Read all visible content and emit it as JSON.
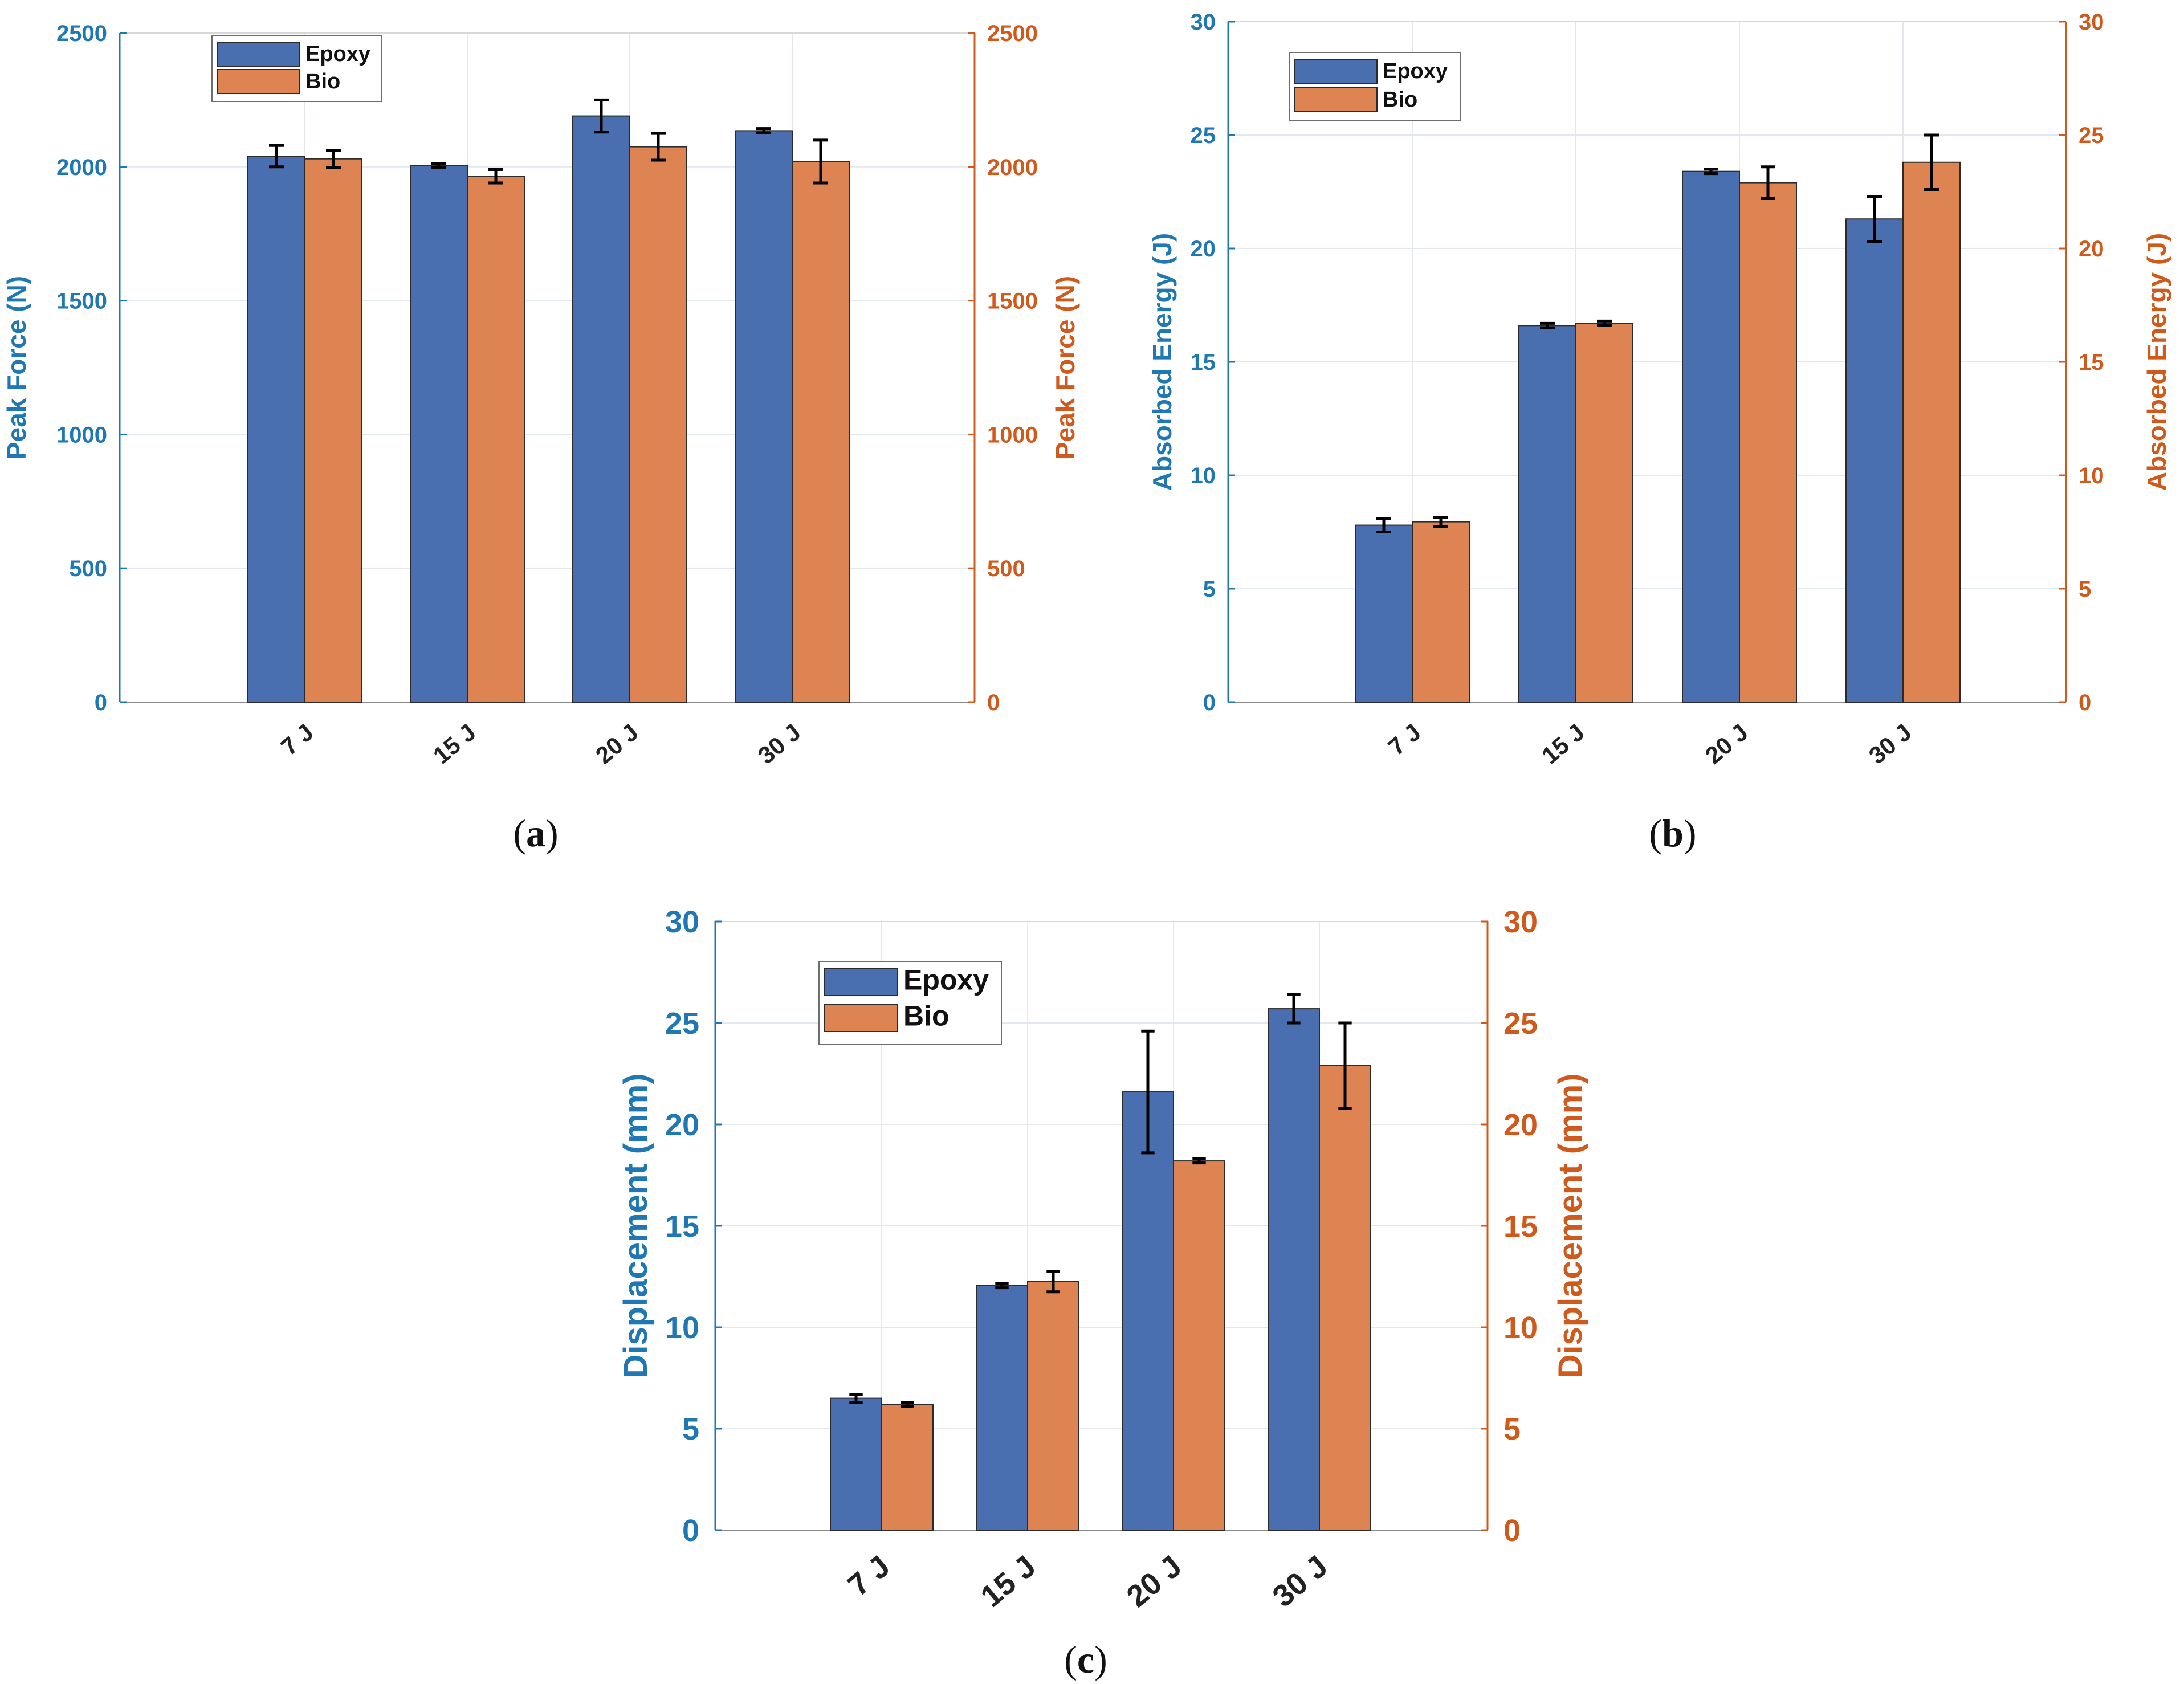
{
  "colors": {
    "epoxy": "#4a6fb0",
    "bio": "#dd8452",
    "left_axis": "#1f78b4",
    "right_axis": "#d05a1c",
    "grid": "#e3e8ee",
    "frame": "#d8d8d8",
    "error": "#000000"
  },
  "chart_data": [
    {
      "type": "bar",
      "panel": "a",
      "panel_label": "a",
      "categories": [
        "7 J",
        "15 J",
        "20 J",
        "30 J"
      ],
      "series": [
        {
          "name": "Epoxy",
          "values": [
            2040,
            2005,
            2190,
            2135
          ],
          "errors": [
            40,
            8,
            60,
            8
          ]
        },
        {
          "name": "Bio",
          "values": [
            2030,
            1965,
            2075,
            2020
          ],
          "errors": [
            32,
            25,
            50,
            80
          ]
        }
      ],
      "ylabel_left": "Peak Force (N)",
      "ylabel_right": "Peak Force (N)",
      "ylim": [
        0,
        2500
      ],
      "yticks": [
        0,
        500,
        1000,
        1500,
        2000,
        2500
      ],
      "legend": {
        "position": "top-left",
        "labels": [
          "Epoxy",
          "Bio"
        ]
      },
      "grid": true
    },
    {
      "type": "bar",
      "panel": "b",
      "panel_label": "b",
      "categories": [
        "7 J",
        "15 J",
        "20 J",
        "30 J"
      ],
      "series": [
        {
          "name": "Epoxy",
          "values": [
            7.8,
            16.6,
            23.4,
            21.3
          ],
          "errors": [
            0.3,
            0.1,
            0.1,
            1.0
          ]
        },
        {
          "name": "Bio",
          "values": [
            7.95,
            16.7,
            22.9,
            23.8
          ],
          "errors": [
            0.2,
            0.1,
            0.7,
            1.2
          ]
        }
      ],
      "ylabel_left": "Absorbed Energy (J)",
      "ylabel_right": "Absorbed Energy (J)",
      "ylim": [
        0,
        30
      ],
      "yticks": [
        0,
        5,
        10,
        15,
        20,
        25,
        30
      ],
      "legend": {
        "position": "top-left",
        "labels": [
          "Epoxy",
          "Bio"
        ]
      },
      "grid": true
    },
    {
      "type": "bar",
      "panel": "c",
      "panel_label": "c",
      "categories": [
        "7 J",
        "15 J",
        "20 J",
        "30 J"
      ],
      "series": [
        {
          "name": "Epoxy",
          "values": [
            6.5,
            12.05,
            21.6,
            25.7
          ],
          "errors": [
            0.2,
            0.1,
            3.0,
            0.7
          ]
        },
        {
          "name": "Bio",
          "values": [
            6.2,
            12.25,
            18.2,
            22.9
          ],
          "errors": [
            0.1,
            0.5,
            0.1,
            2.1
          ]
        }
      ],
      "ylabel_left": "Displacement (mm)",
      "ylabel_right": "Displacement (mm)",
      "ylim": [
        0,
        30
      ],
      "yticks": [
        0,
        5,
        10,
        15,
        20,
        25,
        30
      ],
      "legend": {
        "position": "top-left",
        "labels": [
          "Epoxy",
          "Bio"
        ]
      },
      "grid": true
    }
  ]
}
